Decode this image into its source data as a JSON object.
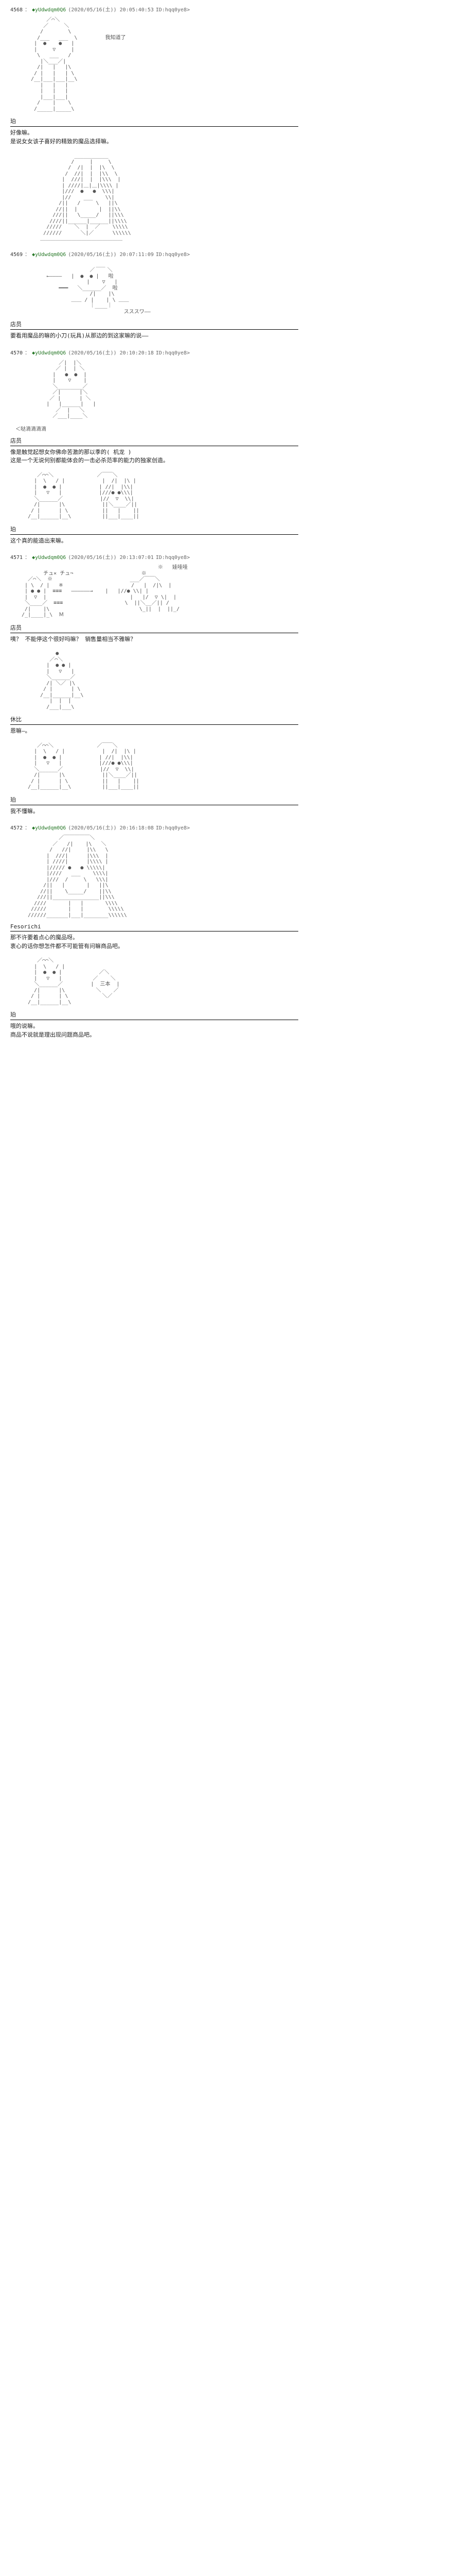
{
  "posts": [
    {
      "num": "4568",
      "name": "◆yUdwdqm0Q6",
      "date": "(2020/05/16(土)) 20:05:40:53",
      "id": "ID:hqq0ye8>",
      "aa": "          ／⌒＼\n         ／     ＼\n        /        \\\n       /___   ___  \\         我知道了\n      |  ●    ●   |\n      |     ▽     |\n       \\   ___   /\n        |＼___／|\n       /|   |   |\\\n      / |   |   | \\\n     /__|___|___|__\\\n        |   |   |\n        |   |   |\n        |___|___|\n       /    |    \\\n      /_____|_____\\",
      "aa2": "                   ___________\n                  /     |     \\\n                 /  /|  |  |\\  \\\n                /  //|  |  |\\\\  \\\n               |  ///|  |  |\\\\\\  |\n               | ////|＿|＿|\\\\\\\\ |\n               |///  ●   ●  \\\\\\|\n               |//    ___    \\\\|\n              /||   /     \\   ||\\\n             //||  |       |  ||\\\\\n            ///||   \\_____/   ||\\\\\\\n           ////||______|______||\\\\\\\\\n          /////    ＼  |  ／    \\\\\\\\\\\n         //////      ＼|／      \\\\\\\\\\\\\n        ＿＿＿＿＿＿＿＿＿＿＿＿＿＿＿＿",
      "sections": [
        {
          "speaker": "珀",
          "text": "好像嘛。\n是说女女该子喜好的精致的魔品选择嘛。"
        }
      ]
    },
    {
      "num": "4569",
      "name": "◆yUdwdqm0Q6",
      "date": "(2020/05/16(土)) 20:07:11:09",
      "id": "ID:hqq0ye8>",
      "aa": "                          ___\n                        ／    ＼\n          ←————   |  ●  ● |   啦\n                       |    ▽   |\n              ━━━   ＼______／  啦\n                        /|    |\\\n                  ＿＿ / |    | \\ ＿＿\n                        ｜____｜\n                                   スススワ——",
      "sections": [
        {
          "speaker": "店员",
          "text": "要看用魔品的嘛的小刀(玩具)从那边的到这家嘛的说——"
        }
      ]
    },
    {
      "num": "4570",
      "name": "◆yUdwdqm0Q6",
      "date": "(2020/05/16(土)) 20:10:20:18",
      "id": "ID:hqq0ye8>",
      "inline_label": "＜哒滴滴滴滴",
      "aa": "              ／|  |＼\n             ／ |  | ＼\n            |   ●  ●  |\n            |    ▽    |\n            ＼________／\n            ／|      |＼\n           ／ |      | ＼\n          |   |______|   |\n             ／  |   ＼\n            ／___|____＼",
      "sections": [
        {
          "speaker": "店员",
          "text": "像是触觉起想女你佛命苦激的那以季的( 机龙 )\n这是一个无说何别都能体会的一击必杀范率的能力的独家创造。"
        }
      ],
      "aa2": "       ／⌒⌒＼              ／￣￣＼\n      |  \\   / |            |  /|  |\\ |\n      |  ●  ● |            | //|  |\\\\|\n      |   ▽   |            |///● ●\\\\\\|\n      ＼______／            |//  ▽  \\\\|\n      /|      |\\            ||＼____／||\n     / |      | \\           ||   |    ||\n    /__|______|__\\          ||___|____||",
      "sections2": [
        {
          "speaker": "珀",
          "text": "这个真的能造出来嘛。"
        }
      ]
    },
    {
      "num": "4571",
      "name": "◆yUdwdqm0Q6",
      "date": "(2020/05/16(土)) 20:13:07:01",
      "id": "ID:hqq0ye8>",
      "aa": "                                              ※   娃哇哇\n         チュ× チュ¬                      ※\n    ／⌒＼  ※                         ___／￣￣＼\n   | \\  / |   ※                      /   |  /|\\  |\n   | ● ● |  ≡≡≡   ——————→    |   |//● \\\\| |\n   |  ▽  |                           |   |/  ▽ \\|  |\n   ＼____／  ≡≡≡                    \\  ||＼__／|| /\n   /|    |\\                             \\_||  |  ||_/\n  /_|____|_\\  Ｍ",
      "sections": [
        {
          "speaker": "店员",
          "text": "咦？ 不能停这个很好吗嘛？  销售量相当不雅嘛？"
        }
      ],
      "aa2": "             ●\n           ／⌒＼\n          |  ● ● |\n          |   ▽   |\n          ＼______／\n          /| ＼／ |\\\n         / |      | \\\n        /__|______|__\\\n           |  |  |\n          /___|___\\",
      "sections2": [
        {
          "speaker": "休比",
          "text": "恩嘛—。"
        }
      ],
      "aa3": "       ／⌒⌒＼              ／￣￣＼\n      |  \\   / |            |  /|  |\\ |\n      |  ●  ● |            | //|  |\\\\|\n      |   ▽   |            |///● ●\\\\\\|\n      ＼______／            |//  ▽  \\\\|\n      /|      |\\            ||＼____／||\n     / |      | \\           ||   |    ||\n    /__|______|__\\          ||___|____||",
      "sections3": [
        {
          "speaker": "珀",
          "text": "我不懂嘛。"
        }
      ]
    },
    {
      "num": "4572",
      "name": "◆yUdwdqm0Q6",
      "date": "(2020/05/16(土)) 20:16:18:08",
      "id": "ID:hqq0ye8>",
      "aa": "              ／￣￣￣￣￣＼\n            ／   /|    |\\   ＼\n           /   //|     |\\\\   \\\n          |  ///|      |\\\\\\  |\n          | ////|      |\\\\\\\\ |\n          |///// ●   ● \\\\\\\\\\|\n          |////   ___    \\\\\\\\|\n          |///  /     \\   \\\\\\|\n         /||   |       |   ||\\\n        //||    \\_____/    ||\\\\\n       ///||_______________||\\\\\\\n      ////       |   |       \\\\\\\\\n     /////       |   |        \\\\\\\\\\\n    //////_______|___|________\\\\\\\\\\\\",
      "sections": [
        {
          "speaker": "Fesorichi",
          "text": "那不许要着点心的魔品呀。\n衷心的话你想怎件都不可能管有问嘛商品吧。"
        }
      ],
      "aa2": "       ／⌒⌒＼\n      |  \\   / |\n      |  ●  ● |            ／＼\n      |   ▽   |          ／    ＼\n      ＼______／         |  三本  |\n      /|      |\\          ＼    ／\n     / |      | \\           ＼／\n    /__|______|__\\",
      "sections2": [
        {
          "speaker": "珀",
          "text": "哦的说嘛。\n商品不说就是理出现问题商品吧。"
        }
      ]
    }
  ]
}
